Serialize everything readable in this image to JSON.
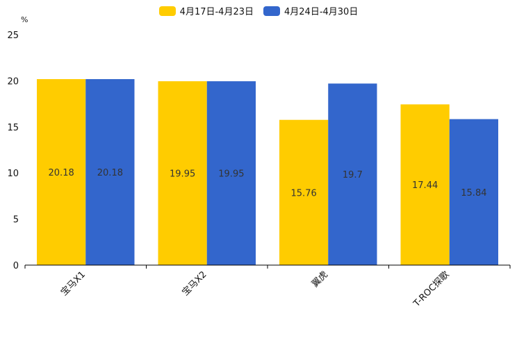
{
  "chart_data": {
    "type": "bar",
    "unit_label": "%",
    "categories": [
      "宝马X1",
      "宝马X2",
      "翼虎",
      "T-ROC探歌"
    ],
    "series": [
      {
        "name": "4月17日-4月23日",
        "color": "#ffcc00",
        "values": [
          20.18,
          19.95,
          15.76,
          17.44
        ]
      },
      {
        "name": "4月24日-4月30日",
        "color": "#3366cc",
        "values": [
          20.18,
          19.95,
          19.7,
          15.84
        ]
      }
    ],
    "yticks": [
      0,
      5,
      10,
      15,
      20,
      25
    ],
    "ylim": [
      0,
      25
    ],
    "title": "",
    "xlabel": "",
    "ylabel": "%",
    "legend_position": "top-center",
    "grid": false
  }
}
